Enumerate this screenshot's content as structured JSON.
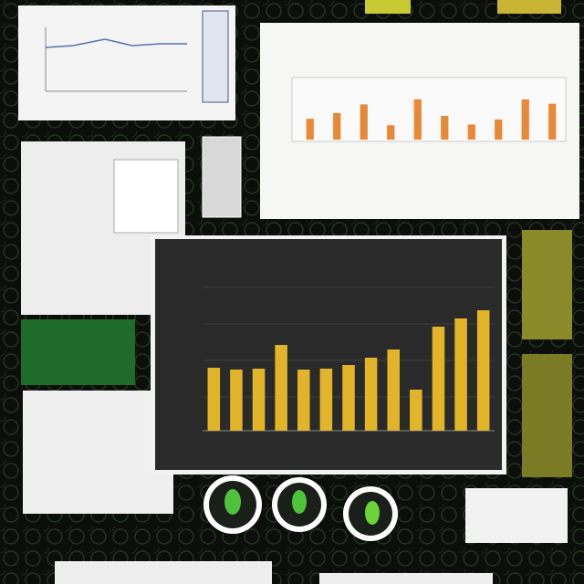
{
  "charts": [
    {
      "type": "bar",
      "values": [
        29,
        37,
        49,
        20,
        56,
        33,
        21,
        28,
        56,
        50
      ],
      "ylim": [
        0,
        80
      ],
      "color": "#e8893a"
    },
    {
      "type": "bar",
      "values": [
        69,
        67,
        68,
        94,
        67,
        68,
        72,
        80,
        89,
        45,
        114,
        123,
        132
      ],
      "ylim": [
        0,
        160
      ],
      "color": "#e2b42a"
    }
  ]
}
